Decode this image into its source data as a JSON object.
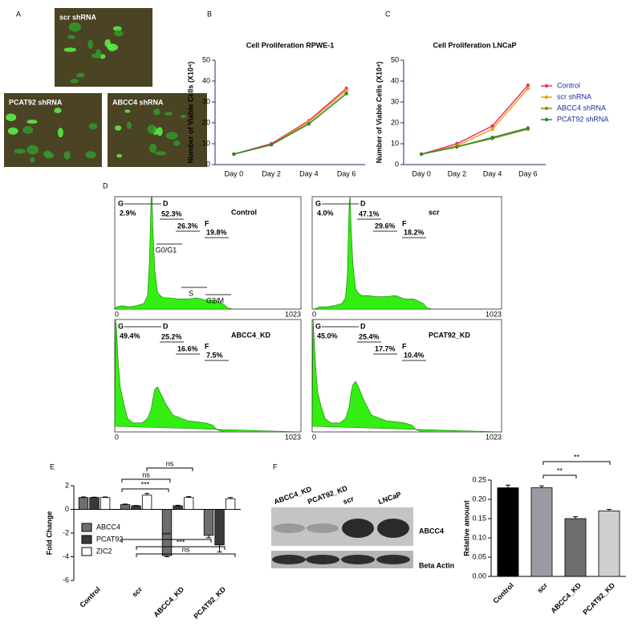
{
  "panel_labels": [
    "A",
    "B",
    "C",
    "D",
    "E",
    "F"
  ],
  "image_labels": [
    "scr shRNA",
    "PCAT92 shRNA",
    "ABCC4 shRNA"
  ],
  "blot": {
    "lanes": [
      "ABCC4_KD",
      "PCAT92_KD",
      "scr",
      "LNCaP"
    ],
    "bands": [
      "ABCC4",
      "Beta Actin"
    ]
  },
  "chart_data": [
    {
      "type": "line",
      "title": "Cell Proliferation RPWE-1",
      "ylabel": "Number of Viable Cells (X10⁴)",
      "categories": [
        "Day 0",
        "Day 2",
        "Day 4",
        "Day 6"
      ],
      "series": [
        {
          "color": "#e8336b",
          "values": [
            5,
            10,
            21,
            36.5
          ]
        },
        {
          "color": "#f39c12",
          "values": [
            5,
            9.5,
            20.5,
            35.5
          ]
        },
        {
          "color": "#8a8a1a",
          "values": [
            5,
            9.5,
            19.5,
            34
          ]
        },
        {
          "color": "#2e8b2e",
          "values": [
            5,
            9.5,
            19.5,
            34
          ]
        }
      ],
      "ylim": [
        0,
        50
      ],
      "yticks": [
        0,
        10,
        20,
        30,
        40,
        50
      ]
    },
    {
      "type": "line",
      "title": "Cell Proliferation LNCaP",
      "ylabel": "Number of Viable Cells (X10⁴)",
      "categories": [
        "Day 0",
        "Day 2",
        "Day 4",
        "Day 6"
      ],
      "series": [
        {
          "name": "Control",
          "color": "#e8336b",
          "values": [
            5,
            10,
            18.5,
            38
          ]
        },
        {
          "name": "scr shRNA",
          "color": "#f39c12",
          "values": [
            5,
            9,
            17,
            36.5
          ]
        },
        {
          "name": "ABCC4 shRNA",
          "color": "#8a8a1a",
          "values": [
            5,
            8.5,
            12.5,
            17
          ]
        },
        {
          "name": "PCAT92 shRNA",
          "color": "#2e8b2e",
          "values": [
            5,
            8.5,
            13,
            17.5
          ]
        }
      ],
      "ylim": [
        0,
        50
      ],
      "yticks": [
        0,
        10,
        20,
        30,
        40,
        50
      ],
      "legend": "right"
    },
    {
      "type": "area",
      "label": "Control",
      "gates": [
        "G",
        "D",
        "F"
      ],
      "percentages": [
        "2.9%",
        "52.3%",
        "26.3%",
        "19.8%"
      ],
      "phases": [
        "G0/G1",
        "S",
        "G2/M"
      ],
      "x": [
        0,
        10,
        40,
        80,
        120,
        160,
        180,
        190,
        200,
        205,
        210,
        220,
        235,
        250,
        270,
        300,
        350,
        400,
        450,
        500,
        550,
        600,
        620,
        650,
        700,
        1023
      ],
      "values": [
        0,
        2,
        3,
        2,
        3,
        5,
        12,
        40,
        100,
        100,
        70,
        35,
        15,
        12,
        10,
        10,
        9,
        9,
        10,
        8,
        8,
        4,
        1,
        0,
        0,
        0
      ],
      "color": "#33ee11",
      "xlim": [
        0,
        1023
      ],
      "xticks": [
        0,
        1023
      ],
      "ylim": [
        0,
        100
      ]
    },
    {
      "type": "area",
      "label": "scr",
      "gates": [
        "G",
        "D",
        "F"
      ],
      "percentages": [
        "4.0%",
        "47.1%",
        "29.6%",
        "18.2%"
      ],
      "x": [
        0,
        10,
        40,
        80,
        120,
        160,
        180,
        190,
        200,
        205,
        210,
        220,
        235,
        250,
        270,
        300,
        350,
        400,
        450,
        500,
        550,
        600,
        620,
        650,
        700,
        1023
      ],
      "values": [
        0,
        0,
        2,
        2,
        3,
        5,
        10,
        30,
        95,
        100,
        75,
        40,
        18,
        14,
        12,
        12,
        11,
        11,
        12,
        9,
        9,
        5,
        1,
        0,
        0,
        0
      ],
      "color": "#33ee11",
      "xlim": [
        0,
        1023
      ],
      "xticks": [
        0,
        1023
      ],
      "ylim": [
        0,
        100
      ]
    },
    {
      "type": "area",
      "label": "ABCC4_KD",
      "gates": [
        "G",
        "D",
        "F"
      ],
      "percentages": [
        "49.4%",
        "25.2%",
        "16.6%",
        "7.5%"
      ],
      "x": [
        0,
        5,
        10,
        20,
        30,
        50,
        70,
        100,
        150,
        180,
        200,
        210,
        220,
        235,
        250,
        280,
        320,
        400,
        450,
        500,
        540,
        560,
        600,
        700,
        850,
        1023
      ],
      "values": [
        5,
        100,
        90,
        60,
        40,
        25,
        12,
        8,
        8,
        12,
        20,
        30,
        38,
        40,
        35,
        25,
        15,
        10,
        9,
        8,
        6,
        2,
        0,
        0,
        0,
        0
      ],
      "color": "#33ee11",
      "xlim": [
        0,
        1023
      ],
      "xticks": [
        0,
        1023
      ],
      "ylim": [
        0,
        100
      ]
    },
    {
      "type": "area",
      "label": "PCAT92_KD",
      "gates": [
        "G",
        "D",
        "F"
      ],
      "percentages": [
        "45.0%",
        "25.4%",
        "17.7%",
        "10.4%"
      ],
      "x": [
        0,
        5,
        10,
        20,
        30,
        50,
        70,
        100,
        150,
        180,
        200,
        210,
        220,
        235,
        250,
        280,
        320,
        400,
        450,
        500,
        540,
        560,
        600,
        700,
        850,
        1023
      ],
      "values": [
        5,
        100,
        85,
        55,
        35,
        22,
        12,
        8,
        8,
        12,
        22,
        35,
        42,
        45,
        40,
        28,
        15,
        10,
        9,
        8,
        6,
        2,
        0,
        0,
        0,
        0
      ],
      "color": "#33ee11",
      "xlim": [
        0,
        1023
      ],
      "xticks": [
        0,
        1023
      ],
      "ylim": [
        0,
        100
      ]
    },
    {
      "type": "bar",
      "ylabel": "Fold Change",
      "categories": [
        "Control",
        "scr",
        "ABCC4_KD",
        "PCAT92_KD"
      ],
      "series": [
        {
          "name": "ABCC4",
          "color": "#6e6e6e",
          "values": [
            1,
            0.4,
            -3.9,
            -2.2
          ],
          "errors": [
            0.05,
            0.05,
            0.1,
            0.2
          ]
        },
        {
          "name": "PCAT92",
          "color": "#3a3a3a",
          "values": [
            1,
            0.3,
            0.3,
            -3.0
          ],
          "errors": [
            0.03,
            0.03,
            0.05,
            0.6
          ]
        },
        {
          "name": "ZIC2",
          "color": "#ffffff",
          "values": [
            1,
            1.2,
            1.0,
            0.9
          ],
          "errors": [
            0.05,
            0.15,
            0.08,
            0.1
          ]
        }
      ],
      "annotations": [
        "ns",
        "ns",
        "***",
        "***",
        "***",
        "ns"
      ],
      "ylim": [
        -6,
        2
      ],
      "yticks": [
        -6,
        -4,
        -2,
        0,
        2
      ],
      "legend": "inside"
    },
    {
      "type": "bar",
      "ylabel": "Relative amount",
      "categories": [
        "Control",
        "scr",
        "ABCC4_KD",
        "PCAT92_KD"
      ],
      "values": [
        0.23,
        0.23,
        0.15,
        0.17
      ],
      "errors": [
        0.007,
        0.005,
        0.005,
        0.004
      ],
      "colors": [
        "#000000",
        "#9a9aa2",
        "#6e6e6e",
        "#cfcfcf"
      ],
      "annotations": [
        "**",
        "**"
      ],
      "ylim": [
        0,
        0.25
      ],
      "yticks": [
        {
          "value": 0,
          "label": "0.00"
        },
        {
          "value": 0.05,
          "label": "0.05"
        },
        {
          "value": 0.1,
          "label": "0.10"
        },
        {
          "value": 0.15,
          "label": "0.15"
        },
        {
          "value": 0.2,
          "label": "0.20"
        },
        {
          "value": 0.25,
          "label": "0.25"
        }
      ]
    }
  ]
}
